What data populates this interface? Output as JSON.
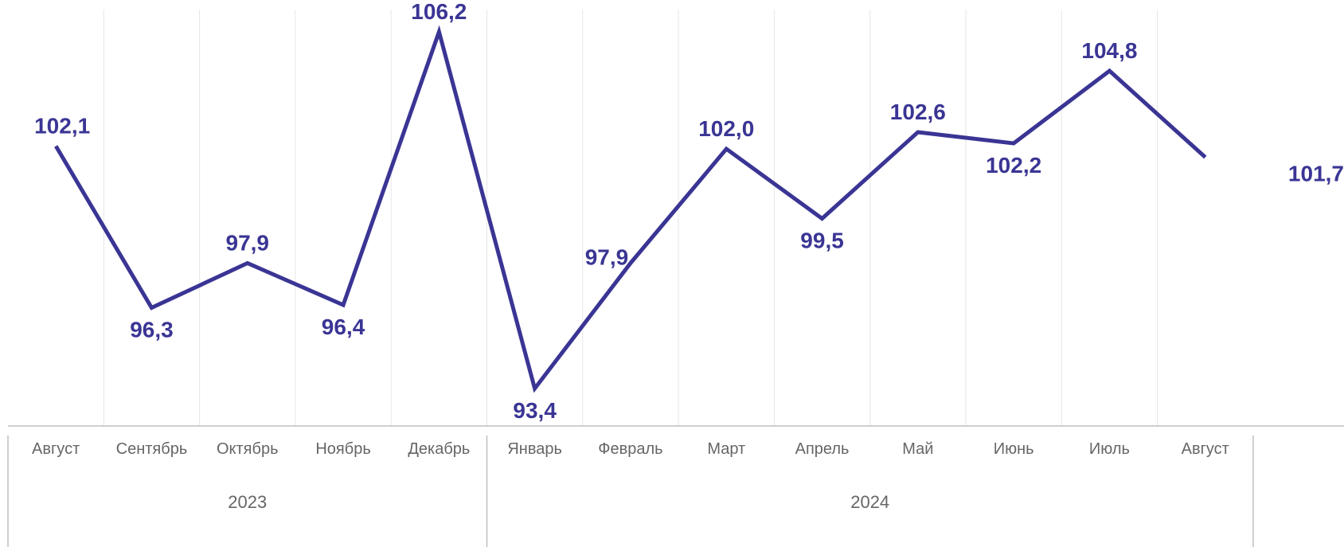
{
  "chart_data": {
    "type": "line",
    "categories": [
      "Август",
      "Сентябрь",
      "Октябрь",
      "Ноябрь",
      "Декабрь",
      "Январь",
      "Февраль",
      "Март",
      "Апрель",
      "Май",
      "Июнь",
      "Июль",
      "Август"
    ],
    "values": [
      102.1,
      96.3,
      97.9,
      96.4,
      106.2,
      93.4,
      97.9,
      102.0,
      99.5,
      102.6,
      102.2,
      104.8,
      101.7
    ],
    "value_labels": [
      "102,1",
      "96,3",
      "97,9",
      "96,4",
      "106,2",
      "93,4",
      "97,9",
      "102,0",
      "99,5",
      "102,6",
      "102,2",
      "104,8",
      "101,7"
    ],
    "groups": [
      {
        "label": "2023",
        "count": 5
      },
      {
        "label": "2024",
        "count": 8
      }
    ],
    "title": "",
    "xlabel": "",
    "ylabel": "",
    "ylim": [
      92.6,
      107
    ],
    "grid": "vertical",
    "legend": "none",
    "colors": {
      "line": "#3a3594",
      "grid": "#e6e6e6",
      "axis": "#bfbfbf",
      "tick_text": "#666666"
    }
  }
}
